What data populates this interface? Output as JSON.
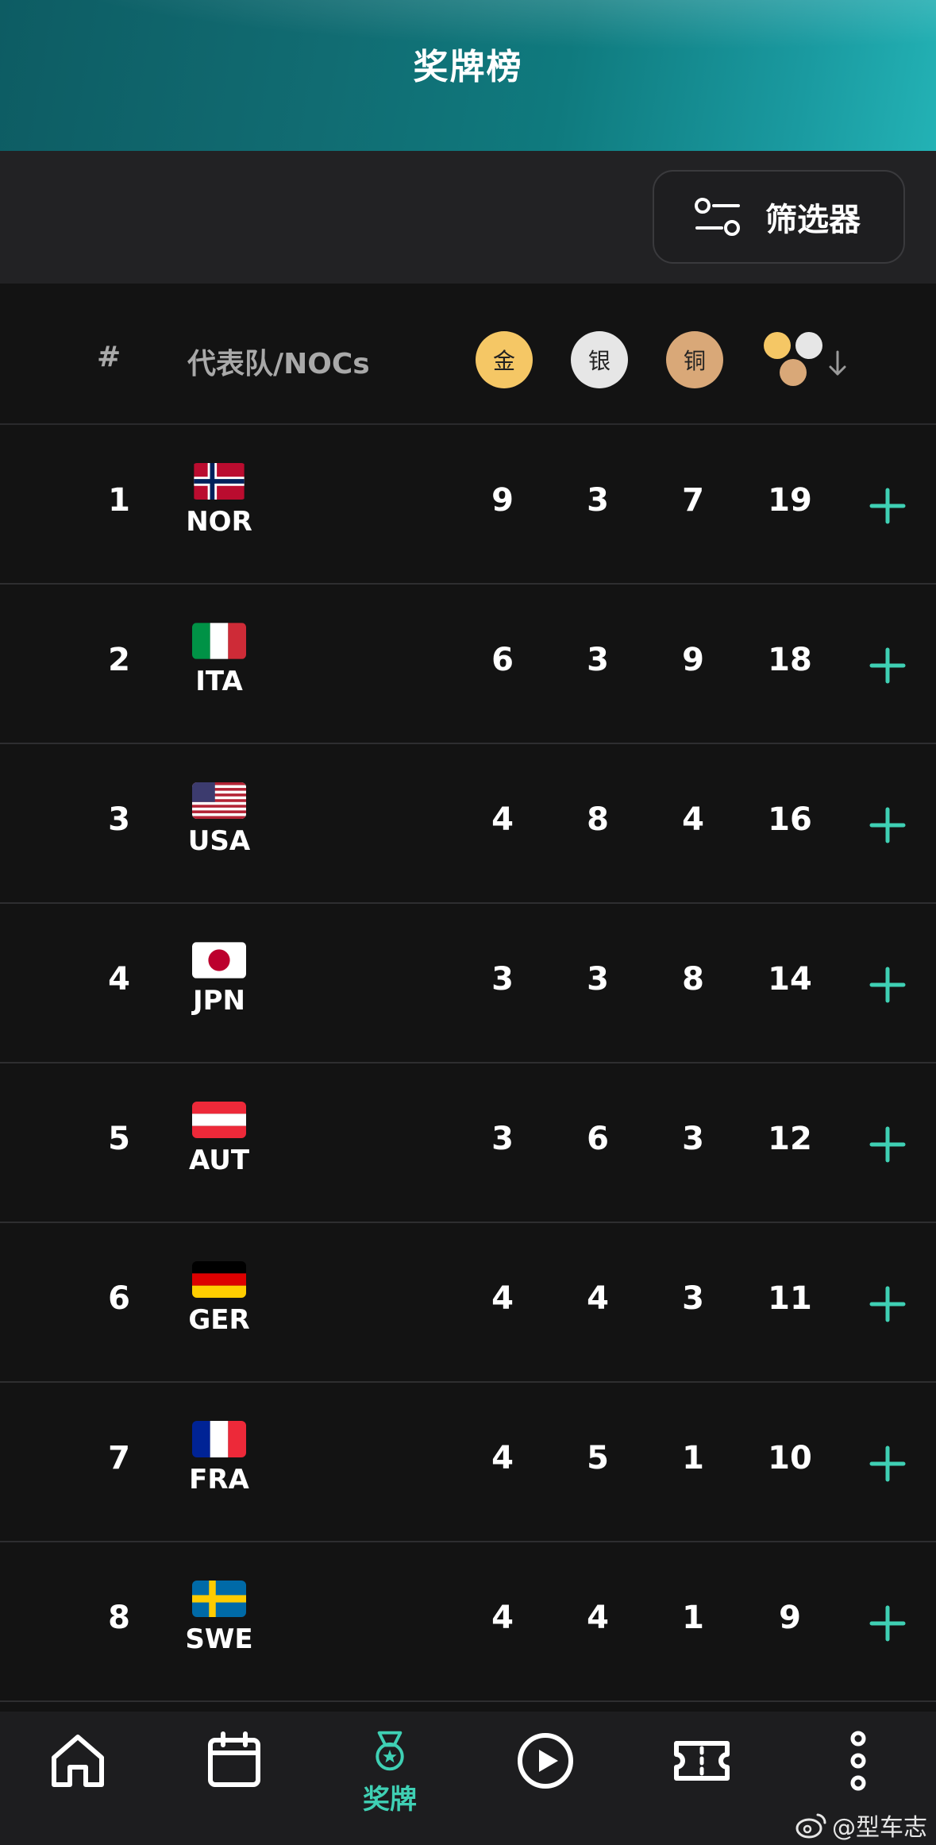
{
  "header": {
    "title": "奖牌榜"
  },
  "filter": {
    "label": "筛选器",
    "icon": "filter-icon"
  },
  "table_header": {
    "rank": "#",
    "team": "代表队/NOCs",
    "gold": "金",
    "silver": "银",
    "bronze": "铜",
    "sort_icon": "sort-down-icon"
  },
  "colors": {
    "gold": "#f5c765",
    "silver": "#e6e6e6",
    "bronze": "#d9a878",
    "accent": "#3fd0b4"
  },
  "rows": [
    {
      "rank": "1",
      "noc": "NOR",
      "gold": "9",
      "silver": "3",
      "bronze": "7",
      "total": "19"
    },
    {
      "rank": "2",
      "noc": "ITA",
      "gold": "6",
      "silver": "3",
      "bronze": "9",
      "total": "18"
    },
    {
      "rank": "3",
      "noc": "USA",
      "gold": "4",
      "silver": "8",
      "bronze": "4",
      "total": "16"
    },
    {
      "rank": "4",
      "noc": "JPN",
      "gold": "3",
      "silver": "3",
      "bronze": "8",
      "total": "14"
    },
    {
      "rank": "5",
      "noc": "AUT",
      "gold": "3",
      "silver": "6",
      "bronze": "3",
      "total": "12"
    },
    {
      "rank": "6",
      "noc": "GER",
      "gold": "4",
      "silver": "4",
      "bronze": "3",
      "total": "11"
    },
    {
      "rank": "7",
      "noc": "FRA",
      "gold": "4",
      "silver": "5",
      "bronze": "1",
      "total": "10"
    },
    {
      "rank": "8",
      "noc": "SWE",
      "gold": "4",
      "silver": "4",
      "bronze": "1",
      "total": "9"
    }
  ],
  "nav": {
    "items": [
      {
        "icon": "home-icon"
      },
      {
        "icon": "calendar-icon"
      },
      {
        "icon": "medal-icon",
        "label": "奖牌",
        "active": true
      },
      {
        "icon": "play-icon"
      },
      {
        "icon": "ticket-icon"
      },
      {
        "icon": "more-icon"
      }
    ]
  },
  "watermark": {
    "text": "@型车志"
  }
}
